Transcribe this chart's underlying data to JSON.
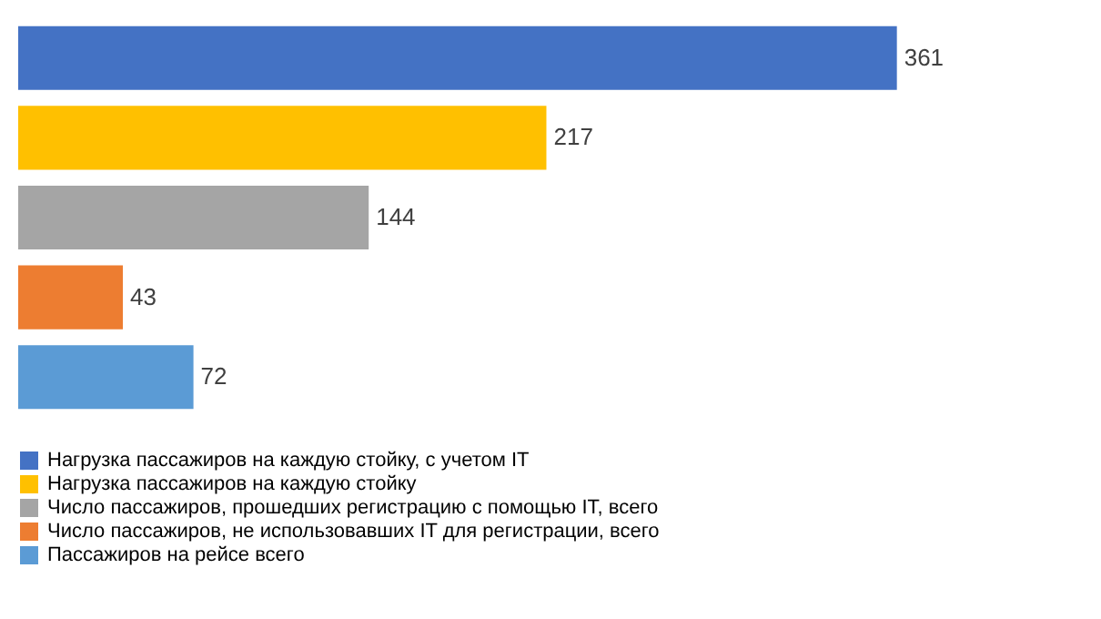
{
  "chart_data": {
    "type": "bar",
    "orientation": "horizontal",
    "stacked": true,
    "categories": [
      null,
      null,
      null,
      null,
      null
    ],
    "data_labels": true,
    "legend": "bottom",
    "grid": false,
    "series": [
      {
        "name": "Нагрузка пассажиров на каждую стойку, с учетом IT",
        "color": "#4472c4",
        "values": [
          361,
          null,
          null,
          null,
          null
        ]
      },
      {
        "name": "Нагрузка пассажиров на каждую стойку",
        "color": "#ffc000",
        "values": [
          null,
          217,
          null,
          null,
          null
        ]
      },
      {
        "name": "Число пассажиров, прошедших регистрацию с помощью IT, всего",
        "color": "#a5a5a5",
        "values": [
          null,
          null,
          144,
          null,
          null
        ]
      },
      {
        "name": "Число пассажиров, не использовавших IT для регистрации, всего",
        "color": "#ed7d31",
        "values": [
          null,
          null,
          null,
          43,
          null
        ]
      },
      {
        "name": "Пассажиров на рейсе всего",
        "color": "#5b9bd5",
        "values": [
          null,
          null,
          null,
          null,
          72
        ]
      }
    ]
  }
}
